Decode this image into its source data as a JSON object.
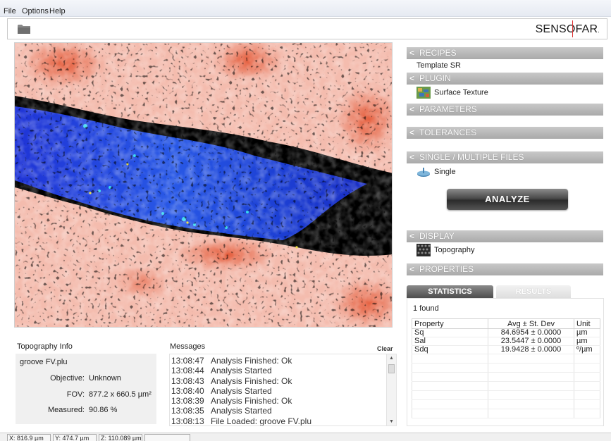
{
  "menu": {
    "file": "File",
    "options": "Options",
    "help": "Help"
  },
  "logo": {
    "text": "SENSOFAR",
    "mark": "."
  },
  "recipes": {
    "header": "RECIPES",
    "value": "Template SR"
  },
  "plugin": {
    "header": "PLUGIN",
    "value": "Surface Texture"
  },
  "parameters": {
    "header": "PARAMETERS"
  },
  "tolerances": {
    "header": "TOLERANCES"
  },
  "files": {
    "header": "SINGLE / MULTIPLE FILES",
    "value": "Single"
  },
  "analyze_label": "ANALYZE",
  "display": {
    "header": "DISPLAY",
    "value": "Topography"
  },
  "properties": {
    "header": "PROPERTIES"
  },
  "tabs": {
    "statistics": "STATISTICS",
    "results": "RESULTS"
  },
  "stats": {
    "found": "1 found",
    "columns": [
      "Property",
      "Avg ± St. Dev",
      "Unit"
    ],
    "rows": [
      [
        "Sq",
        "84.6954 ± 0.0000",
        "µm"
      ],
      [
        "Sal",
        "23.5447 ± 0.0000",
        "µm"
      ],
      [
        "Sdq",
        "19.9428 ± 0.0000",
        "º/µm"
      ]
    ]
  },
  "topo_info": {
    "title": "Topography Info",
    "filename": "groove FV.plu",
    "objective_label": "Objective:",
    "objective_value": "Unknown",
    "fov_label": "FOV:",
    "fov_value": "877.2 x 660.5 µm²",
    "measured_label": "Measured:",
    "measured_value": "90.86 %"
  },
  "messages": {
    "title": "Messages",
    "clear": "Clear",
    "items": [
      [
        "13:08:47",
        "Analysis Finished: Ok"
      ],
      [
        "13:08:44",
        "Analysis Started"
      ],
      [
        "13:08:43",
        "Analysis Finished: Ok"
      ],
      [
        "13:08:40",
        "Analysis Started"
      ],
      [
        "13:08:39",
        "Analysis Finished: Ok"
      ],
      [
        "13:08:35",
        "Analysis Started"
      ],
      [
        "13:08:13",
        "File Loaded: groove FV.plu"
      ]
    ]
  },
  "status": {
    "x": "X: 816.9 µm",
    "y": "Y: 474.7 µm",
    "z": "Z: 110.089 µm"
  },
  "colors": {
    "header_gray": "#b4b4b4",
    "surface_high": "#f2b5a5",
    "surface_peak": "#e8522e",
    "groove": "#1f3fd8",
    "void": "#000000"
  }
}
